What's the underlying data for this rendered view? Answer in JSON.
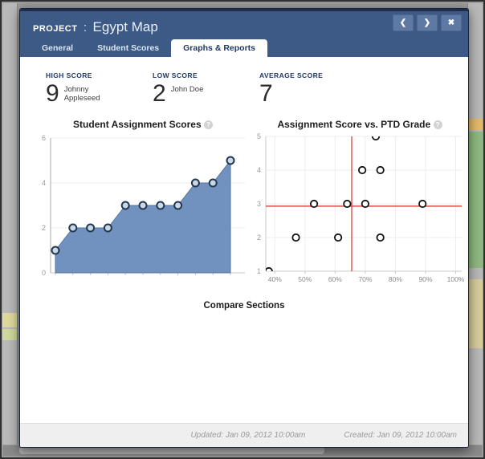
{
  "window": {
    "header": {
      "project_label": "PROJECT",
      "separator": ":",
      "title": "Egypt Map",
      "prev_icon": "❮",
      "next_icon": "❯",
      "close_icon": "✖"
    },
    "tabs": [
      {
        "label": "General",
        "active": false
      },
      {
        "label": "Student Scores",
        "active": false
      },
      {
        "label": "Graphs & Reports",
        "active": true
      }
    ]
  },
  "stats": [
    {
      "label": "HIGH SCORE",
      "value": "9",
      "name": "Johnny Appleseed"
    },
    {
      "label": "LOW SCORE",
      "value": "2",
      "name": "John Doe"
    },
    {
      "label": "AVERAGE SCORE",
      "value": "7",
      "name": ""
    }
  ],
  "compare_sections_label": "Compare Sections",
  "footer": {
    "updated": "Updated: Jan 09, 2012 10:00am",
    "created": "Created: Jan 09, 2012 10:00am"
  },
  "colors": {
    "header_blue": "#3C5A85",
    "button_blue": "#5F79A5",
    "active_tab_text": "#1F3864",
    "accent_red": "#E03C3C",
    "area_fill": "#7191BE",
    "footer_bg": "#EFEFEF"
  },
  "chart_data": [
    {
      "type": "area",
      "title": "Student Assignment Scores",
      "help_icon": "?",
      "x": [
        1,
        2,
        3,
        4,
        5,
        6,
        7,
        8,
        9,
        10,
        11
      ],
      "values": [
        1,
        2,
        2,
        2,
        3,
        3,
        3,
        3,
        4,
        4,
        5
      ],
      "ylim": [
        0,
        6
      ],
      "yticks": [
        0,
        2,
        4,
        6
      ],
      "grid": true,
      "legend": "none",
      "fill_color": "#7191BE",
      "line_color": "#54779F",
      "marker": {
        "fill": "#C9D7E8",
        "stroke": "#22384F"
      }
    },
    {
      "type": "scatter",
      "title": "Assignment Score vs. PTD Grade",
      "help_icon": "?",
      "xlim": [
        37,
        102
      ],
      "ylim": [
        1,
        5
      ],
      "xticks": [
        40,
        50,
        60,
        70,
        80,
        90,
        100
      ],
      "xtick_labels": [
        "40%",
        "50%",
        "60%",
        "70%",
        "80%",
        "90%",
        "100%"
      ],
      "yticks": [
        1,
        2,
        3,
        4,
        5
      ],
      "points": [
        [
          38,
          1
        ],
        [
          47,
          2
        ],
        [
          61,
          2
        ],
        [
          75,
          2
        ],
        [
          53,
          3
        ],
        [
          64,
          3
        ],
        [
          70,
          3
        ],
        [
          89,
          3
        ],
        [
          69,
          4
        ],
        [
          75,
          4
        ],
        [
          73.5,
          5
        ]
      ],
      "crosshair": {
        "x": 65.5,
        "y": 2.93
      },
      "crosshair_color": "#E03C3C",
      "marker": {
        "fill": "#FFFFFF",
        "stroke": "#141414"
      },
      "grid": true,
      "legend": "none"
    }
  ]
}
